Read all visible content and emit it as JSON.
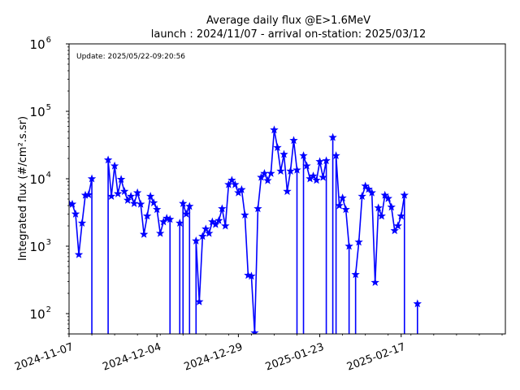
{
  "chart_data": {
    "type": "line",
    "title": "Average daily flux @E>1.6MeV",
    "subtitle": "launch : 2024/11/07 - arrival on-station: 2025/03/12",
    "annotation": "Update: 2025/05/22-09:20:56",
    "xlabel": "",
    "ylabel": "Integrated flux (#/cm².s.sr)",
    "yscale": "log",
    "ylim": [
      50,
      1000000
    ],
    "xlim": [
      "2024-11-07",
      "2025-03-21"
    ],
    "grid": false,
    "color": "#0000ff",
    "marker": "star",
    "x_tick_labels": [
      "2024-11-07",
      "2024-12-04",
      "2024-12-29",
      "2025-01-23",
      "2025-02-17"
    ],
    "y_tick_labels": [
      {
        "base": "10",
        "exp": "2"
      },
      {
        "base": "10",
        "exp": "3"
      },
      {
        "base": "10",
        "exp": "4"
      },
      {
        "base": "10",
        "exp": "5"
      },
      {
        "base": "10",
        "exp": "6"
      }
    ],
    "series": [
      {
        "points": [
          [
            "2024-11-07",
            4300
          ],
          [
            "2024-11-08",
            4200
          ],
          [
            "2024-11-09",
            3000
          ],
          [
            "2024-11-10",
            750
          ],
          [
            "2024-11-11",
            2200
          ],
          [
            "2024-11-12",
            5700
          ],
          [
            "2024-11-13",
            5800
          ],
          [
            "2024-11-14",
            10000
          ],
          [
            "2024-11-19",
            19000
          ],
          [
            "2024-11-20",
            5500
          ],
          [
            "2024-11-21",
            15500
          ],
          [
            "2024-11-22",
            6000
          ],
          [
            "2024-11-23",
            9800
          ],
          [
            "2024-11-24",
            6500
          ],
          [
            "2024-11-25",
            4800
          ],
          [
            "2024-11-26",
            5500
          ],
          [
            "2024-11-27",
            4300
          ],
          [
            "2024-11-28",
            6200
          ],
          [
            "2024-11-29",
            4200
          ],
          [
            "2024-11-30",
            1500
          ],
          [
            "2024-12-01",
            2800
          ],
          [
            "2024-12-02",
            5500
          ],
          [
            "2024-12-03",
            4400
          ],
          [
            "2024-12-04",
            3500
          ],
          [
            "2024-12-05",
            1550
          ],
          [
            "2024-12-06",
            2300
          ],
          [
            "2024-12-07",
            2600
          ],
          [
            "2024-12-08",
            2500
          ],
          [
            "2024-12-11",
            2200
          ],
          [
            "2024-12-12",
            4300
          ],
          [
            "2024-12-13",
            3000
          ],
          [
            "2024-12-14",
            3900
          ],
          [
            "2024-12-16",
            1200
          ],
          [
            "2024-12-17",
            150
          ],
          [
            "2024-12-18",
            1400
          ],
          [
            "2024-12-19",
            1800
          ],
          [
            "2024-12-20",
            1550
          ],
          [
            "2024-12-21",
            2300
          ],
          [
            "2024-12-22",
            2100
          ],
          [
            "2024-12-23",
            2400
          ],
          [
            "2024-12-24",
            3600
          ],
          [
            "2024-12-25",
            2000
          ],
          [
            "2024-12-26",
            8200
          ],
          [
            "2024-12-27",
            9500
          ],
          [
            "2024-12-28",
            8200
          ],
          [
            "2024-12-29",
            6200
          ],
          [
            "2024-12-30",
            6900
          ],
          [
            "2024-12-31",
            2900
          ],
          [
            "2025-01-01",
            370
          ],
          [
            "2025-01-02",
            360
          ],
          [
            "2025-01-03",
            52
          ],
          [
            "2025-01-04",
            3600
          ],
          [
            "2025-01-05",
            10500
          ],
          [
            "2025-01-06",
            12000
          ],
          [
            "2025-01-07",
            9400
          ],
          [
            "2025-01-08",
            12000
          ],
          [
            "2025-01-09",
            53000
          ],
          [
            "2025-01-10",
            29000
          ],
          [
            "2025-01-11",
            13000
          ],
          [
            "2025-01-12",
            23000
          ],
          [
            "2025-01-13",
            6500
          ],
          [
            "2025-01-14",
            13000
          ],
          [
            "2025-01-15",
            37000
          ],
          [
            "2025-01-16",
            13500
          ],
          [
            "2025-01-18",
            22000
          ],
          [
            "2025-01-19",
            15500
          ],
          [
            "2025-01-20",
            10000
          ],
          [
            "2025-01-21",
            11000
          ],
          [
            "2025-01-22",
            9500
          ],
          [
            "2025-01-23",
            18000
          ],
          [
            "2025-01-24",
            10500
          ],
          [
            "2025-01-25",
            18500
          ],
          [
            "2025-01-27",
            41000
          ],
          [
            "2025-01-28",
            22000
          ],
          [
            "2025-01-29",
            4000
          ],
          [
            "2025-01-30",
            5200
          ],
          [
            "2025-01-31",
            3500
          ],
          [
            "2025-02-01",
            1000
          ],
          [
            "2025-02-03",
            380
          ],
          [
            "2025-02-04",
            1150
          ],
          [
            "2025-02-05",
            5500
          ],
          [
            "2025-02-06",
            7800
          ],
          [
            "2025-02-07",
            7000
          ],
          [
            "2025-02-08",
            6200
          ],
          [
            "2025-02-09",
            290
          ],
          [
            "2025-02-10",
            3700
          ],
          [
            "2025-02-11",
            2800
          ],
          [
            "2025-02-12",
            5700
          ],
          [
            "2025-02-13",
            5100
          ],
          [
            "2025-02-14",
            3800
          ],
          [
            "2025-02-15",
            1700
          ],
          [
            "2025-02-16",
            2000
          ],
          [
            "2025-02-17",
            2800
          ],
          [
            "2025-02-18",
            5700
          ],
          [
            "2025-02-22",
            140
          ]
        ],
        "gap_dates": [
          "2024-11-14",
          "2024-12-08",
          "2024-12-11",
          "2024-12-14",
          "2025-01-16",
          "2025-01-25",
          "2025-01-27",
          "2025-02-01",
          "2025-02-18"
        ]
      }
    ]
  }
}
